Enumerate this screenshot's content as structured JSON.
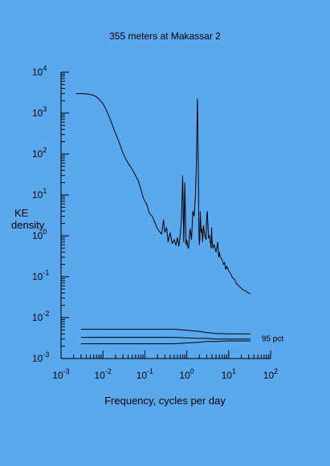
{
  "chart_data": {
    "type": "line",
    "title": "355 meters at Makassar 2",
    "xlabel": "Frequency, cycles per day",
    "ylabel": [
      "KE",
      "density"
    ],
    "xscale": "log",
    "yscale": "log",
    "xlim": [
      0.001,
      100
    ],
    "ylim": [
      0.001,
      10000
    ],
    "x_ticks": [
      {
        "base": "10",
        "exp": "-3"
      },
      {
        "base": "10",
        "exp": "-2"
      },
      {
        "base": "10",
        "exp": "-1"
      },
      {
        "base": "10",
        "exp": "0"
      },
      {
        "base": "10",
        "exp": "1"
      },
      {
        "base": "10",
        "exp": "2"
      }
    ],
    "y_ticks": [
      {
        "base": "10",
        "exp": "4"
      },
      {
        "base": "10",
        "exp": "3"
      },
      {
        "base": "10",
        "exp": "2"
      },
      {
        "base": "10",
        "exp": "1"
      },
      {
        "base": "10",
        "exp": "0"
      },
      {
        "base": "10",
        "exp": "-1"
      },
      {
        "base": "10",
        "exp": "-2"
      },
      {
        "base": "10",
        "exp": "-3"
      }
    ],
    "spectrum": {
      "x": [
        0.00225,
        0.003,
        0.004,
        0.005,
        0.006,
        0.007,
        0.008,
        0.01,
        0.012,
        0.015,
        0.018,
        0.02,
        0.025,
        0.03,
        0.035,
        0.04,
        0.05,
        0.06,
        0.07,
        0.08,
        0.09,
        0.1,
        0.11,
        0.12,
        0.13,
        0.15,
        0.17,
        0.2,
        0.22,
        0.25,
        0.28,
        0.3,
        0.33,
        0.36,
        0.4,
        0.45,
        0.5,
        0.55,
        0.6,
        0.65,
        0.7,
        0.75,
        0.8,
        0.85,
        0.9,
        0.93,
        0.96,
        1.0,
        1.04,
        1.08,
        1.1,
        1.2,
        1.3,
        1.4,
        1.5,
        1.6,
        1.7,
        1.75,
        1.8,
        1.85,
        1.9,
        1.93,
        1.96,
        2.0,
        2.05,
        2.1,
        2.2,
        2.3,
        2.4,
        2.5,
        2.7,
        2.9,
        3.0,
        3.1,
        3.3,
        3.5,
        3.8,
        3.9,
        4.0,
        4.2,
        4.5,
        5.0,
        5.5,
        5.8,
        6.0,
        6.3,
        7.0,
        7.5,
        8.0,
        8.5,
        9.0,
        10.0,
        11.0,
        12.0,
        13.0,
        14.0,
        15.0,
        16.0,
        18.0,
        20.0,
        22.0,
        25.0,
        28.0,
        30.0,
        33.0
      ],
      "y": [
        3000,
        3000,
        2950,
        2850,
        2700,
        2500,
        2200,
        1700,
        1200,
        700,
        420,
        320,
        180,
        105,
        75,
        60,
        42,
        30,
        22,
        14,
        9,
        7,
        6,
        4.5,
        3.5,
        3,
        2.2,
        1.5,
        1.3,
        1.1,
        2.5,
        1.2,
        1.6,
        0.7,
        1.2,
        0.65,
        0.8,
        0.6,
        0.9,
        0.55,
        1.1,
        2.5,
        30,
        0.7,
        20,
        3,
        0.6,
        0.8,
        0.6,
        0.5,
        0.5,
        1.5,
        0.8,
        4,
        3,
        9,
        60,
        400,
        2300,
        300,
        20,
        3,
        0.9,
        0.6,
        0.9,
        4,
        1.2,
        1.5,
        0.7,
        1.8,
        1.0,
        0.8,
        3,
        4,
        0.9,
        1.0,
        0.5,
        1.6,
        0.8,
        0.5,
        0.6,
        0.4,
        0.7,
        0.3,
        0.4,
        0.3,
        0.26,
        0.2,
        0.22,
        0.15,
        0.18,
        0.14,
        0.12,
        0.1,
        0.09,
        0.085,
        0.07,
        0.065,
        0.058,
        0.052,
        0.048,
        0.045,
        0.042,
        0.04,
        0.038
      ]
    },
    "confidence": {
      "label": "95 pct",
      "x": [
        0.003,
        0.5,
        1.0,
        2.0,
        3.0,
        5.0,
        10.0,
        33.0
      ],
      "upper": [
        0.0052,
        0.0052,
        0.0049,
        0.0046,
        0.0043,
        0.0041,
        0.004,
        0.004
      ],
      "middle": [
        0.0033,
        0.0033,
        0.0032,
        0.0031,
        0.0031,
        0.003,
        0.003,
        0.003
      ],
      "lower": [
        0.0023,
        0.0023,
        0.0024,
        0.0025,
        0.0026,
        0.0026,
        0.0027,
        0.0027
      ]
    },
    "grid": false,
    "legend": "none"
  }
}
